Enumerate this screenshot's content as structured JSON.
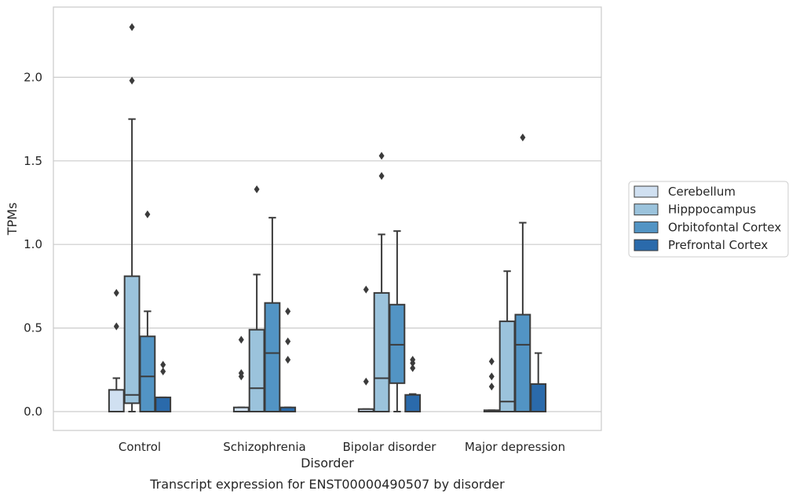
{
  "chart_data": {
    "type": "box",
    "caption": "Transcript expression for ENST00000490507 by disorder",
    "xlabel": "Disorder",
    "ylabel": "TPMs",
    "ylim": [
      -0.11,
      2.43
    ],
    "yticks": [
      0.0,
      0.5,
      1.0,
      1.5,
      2.0
    ],
    "ytick_labels": [
      "0.0",
      "0.5",
      "1.0",
      "1.5",
      "2.0"
    ],
    "grid": "horizontal",
    "legend_position": "right",
    "categories": [
      "Control",
      "Schizophrenia",
      "Bipolar disorder",
      "Major depression"
    ],
    "series": [
      {
        "name": "Cerebellum",
        "color": "#d0e0f1",
        "boxes": [
          {
            "q1": 0.0,
            "median": 0.0,
            "q3": 0.13,
            "whislo": 0.0,
            "whishi": 0.2,
            "fliers": [
              0.51,
              0.71
            ]
          },
          {
            "q1": 0.0,
            "median": 0.0,
            "q3": 0.025,
            "whislo": 0.0,
            "whishi": 0.025,
            "fliers": [
              0.21,
              0.23,
              0.43
            ]
          },
          {
            "q1": 0.0,
            "median": 0.0,
            "q3": 0.015,
            "whislo": 0.0,
            "whishi": 0.015,
            "fliers": [
              0.18,
              0.73
            ]
          },
          {
            "q1": 0.0,
            "median": 0.0,
            "q3": 0.008,
            "whislo": 0.0,
            "whishi": 0.008,
            "fliers": [
              0.15,
              0.21,
              0.3
            ]
          }
        ]
      },
      {
        "name": "Hipppocampus",
        "color": "#9bc3dc",
        "boxes": [
          {
            "q1": 0.05,
            "median": 0.1,
            "q3": 0.81,
            "whislo": 0.0,
            "whishi": 1.75,
            "fliers": [
              1.98,
              2.3
            ]
          },
          {
            "q1": 0.0,
            "median": 0.14,
            "q3": 0.49,
            "whislo": 0.0,
            "whishi": 0.82,
            "fliers": [
              1.33
            ]
          },
          {
            "q1": 0.0,
            "median": 0.2,
            "q3": 0.71,
            "whislo": 0.0,
            "whishi": 1.06,
            "fliers": [
              1.41,
              1.53
            ]
          },
          {
            "q1": 0.0,
            "median": 0.06,
            "q3": 0.54,
            "whislo": 0.0,
            "whishi": 0.84,
            "fliers": []
          }
        ]
      },
      {
        "name": "Orbitofontal Cortex",
        "color": "#5294c4",
        "boxes": [
          {
            "q1": 0.0,
            "median": 0.21,
            "q3": 0.45,
            "whislo": 0.0,
            "whishi": 0.6,
            "fliers": [
              1.18
            ]
          },
          {
            "q1": 0.0,
            "median": 0.35,
            "q3": 0.65,
            "whislo": 0.0,
            "whishi": 1.16,
            "fliers": []
          },
          {
            "q1": 0.17,
            "median": 0.4,
            "q3": 0.64,
            "whislo": 0.0,
            "whishi": 1.08,
            "fliers": []
          },
          {
            "q1": 0.0,
            "median": 0.4,
            "q3": 0.58,
            "whislo": 0.0,
            "whishi": 1.13,
            "fliers": [
              1.64
            ]
          }
        ]
      },
      {
        "name": "Prefrontal Cortex",
        "color": "#2a6aab",
        "boxes": [
          {
            "q1": 0.0,
            "median": 0.0,
            "q3": 0.085,
            "whislo": 0.0,
            "whishi": 0.085,
            "fliers": [
              0.24,
              0.28
            ]
          },
          {
            "q1": 0.0,
            "median": 0.0,
            "q3": 0.025,
            "whislo": 0.0,
            "whishi": 0.025,
            "fliers": [
              0.31,
              0.42,
              0.6
            ]
          },
          {
            "q1": 0.0,
            "median": 0.0,
            "q3": 0.1,
            "whislo": 0.0,
            "whishi": 0.105,
            "fliers": [
              0.26,
              0.29,
              0.31
            ]
          },
          {
            "q1": 0.0,
            "median": 0.0,
            "q3": 0.165,
            "whislo": 0.0,
            "whishi": 0.35,
            "fliers": []
          }
        ]
      }
    ]
  }
}
